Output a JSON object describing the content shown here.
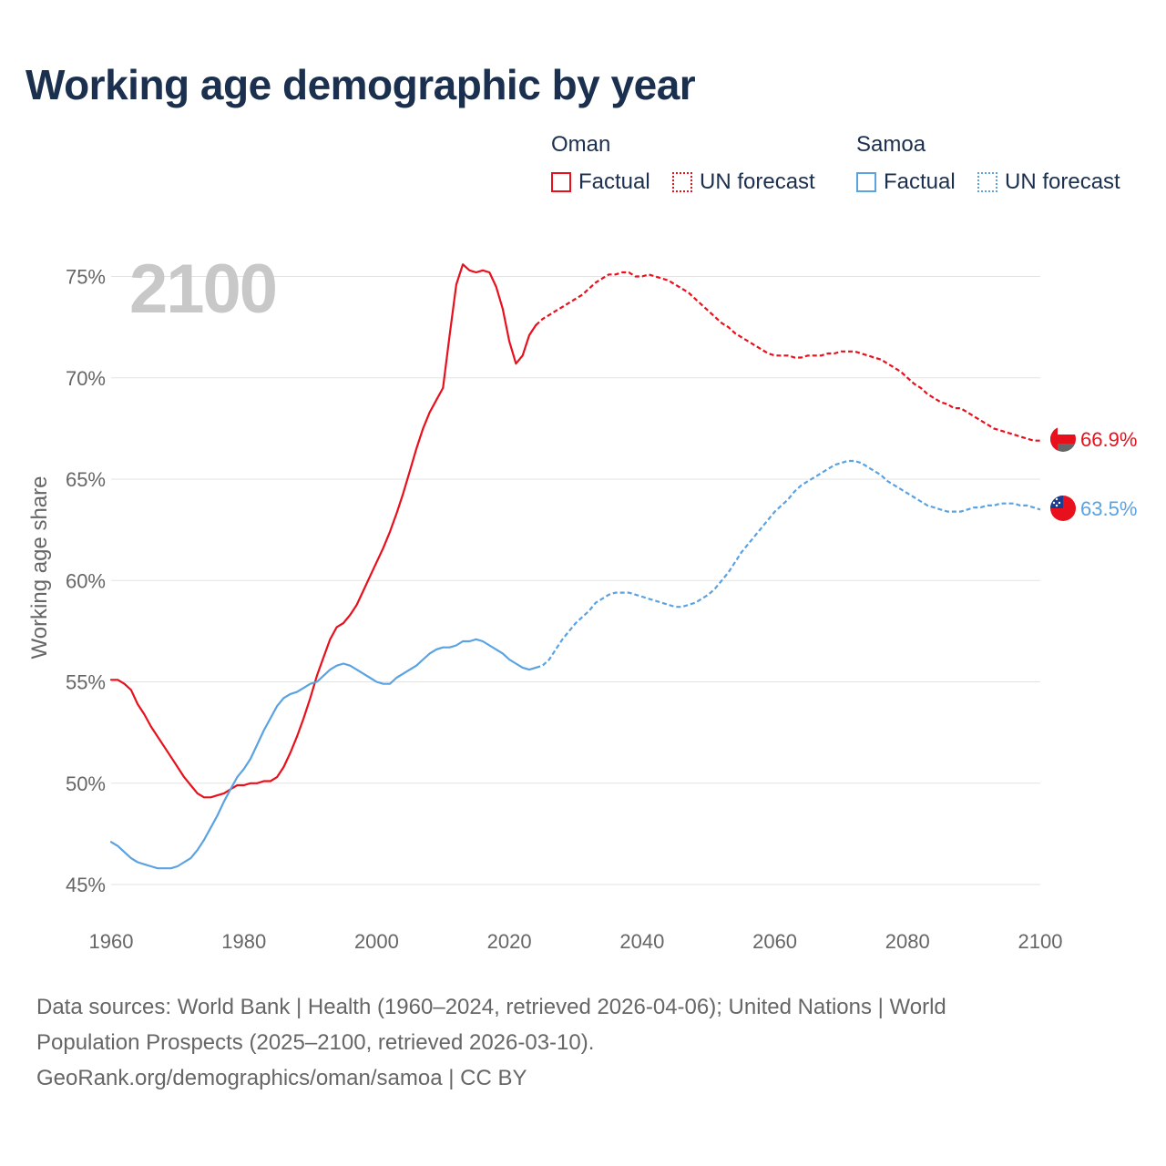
{
  "title": "Working age demographic by year",
  "legend": {
    "groups": [
      {
        "name": "Oman",
        "color": "#e8101c",
        "factual_label": "Factual",
        "forecast_label": "UN forecast"
      },
      {
        "name": "Samoa",
        "color": "#5aa2e2",
        "factual_label": "Factual",
        "forecast_label": "UN forecast"
      }
    ]
  },
  "chart_data": {
    "type": "line",
    "year_label": "2100",
    "ylabel": "Working age share",
    "xlim": [
      1960,
      2100
    ],
    "ylim": [
      45,
      76
    ],
    "x_ticks": [
      1960,
      1980,
      2000,
      2020,
      2040,
      2060,
      2080,
      2100
    ],
    "y_ticks": [
      45,
      50,
      55,
      60,
      65,
      70,
      75
    ],
    "y_tick_labels": [
      "45%",
      "50%",
      "55%",
      "60%",
      "65%",
      "70%",
      "75%"
    ],
    "factual_end_year": 2024,
    "series": [
      {
        "name": "Oman",
        "color": "#e8101c",
        "end_label": "66.9%",
        "flag_icon": "oman-flag-icon",
        "points": [
          [
            1960,
            55.1
          ],
          [
            1961,
            55.1
          ],
          [
            1962,
            54.9
          ],
          [
            1963,
            54.6
          ],
          [
            1964,
            53.9
          ],
          [
            1965,
            53.4
          ],
          [
            1966,
            52.8
          ],
          [
            1967,
            52.3
          ],
          [
            1968,
            51.8
          ],
          [
            1969,
            51.3
          ],
          [
            1970,
            50.8
          ],
          [
            1971,
            50.3
          ],
          [
            1972,
            49.9
          ],
          [
            1973,
            49.5
          ],
          [
            1974,
            49.3
          ],
          [
            1975,
            49.3
          ],
          [
            1976,
            49.4
          ],
          [
            1977,
            49.5
          ],
          [
            1978,
            49.7
          ],
          [
            1979,
            49.9
          ],
          [
            1980,
            49.9
          ],
          [
            1981,
            50.0
          ],
          [
            1982,
            50.0
          ],
          [
            1983,
            50.1
          ],
          [
            1984,
            50.1
          ],
          [
            1985,
            50.3
          ],
          [
            1986,
            50.8
          ],
          [
            1987,
            51.5
          ],
          [
            1988,
            52.3
          ],
          [
            1989,
            53.2
          ],
          [
            1990,
            54.2
          ],
          [
            1991,
            55.3
          ],
          [
            1992,
            56.2
          ],
          [
            1993,
            57.1
          ],
          [
            1994,
            57.7
          ],
          [
            1995,
            57.9
          ],
          [
            1996,
            58.3
          ],
          [
            1997,
            58.8
          ],
          [
            1998,
            59.5
          ],
          [
            1999,
            60.2
          ],
          [
            2000,
            60.9
          ],
          [
            2001,
            61.6
          ],
          [
            2002,
            62.4
          ],
          [
            2003,
            63.3
          ],
          [
            2004,
            64.3
          ],
          [
            2005,
            65.4
          ],
          [
            2006,
            66.5
          ],
          [
            2007,
            67.5
          ],
          [
            2008,
            68.3
          ],
          [
            2009,
            68.9
          ],
          [
            2010,
            69.5
          ],
          [
            2011,
            72.1
          ],
          [
            2012,
            74.6
          ],
          [
            2013,
            75.6
          ],
          [
            2014,
            75.3
          ],
          [
            2015,
            75.2
          ],
          [
            2016,
            75.3
          ],
          [
            2017,
            75.2
          ],
          [
            2018,
            74.5
          ],
          [
            2019,
            73.4
          ],
          [
            2020,
            71.8
          ],
          [
            2021,
            70.7
          ],
          [
            2022,
            71.1
          ],
          [
            2023,
            72.1
          ],
          [
            2024,
            72.6
          ],
          [
            2025,
            72.9
          ],
          [
            2026,
            73.1
          ],
          [
            2027,
            73.3
          ],
          [
            2028,
            73.5
          ],
          [
            2029,
            73.7
          ],
          [
            2030,
            73.9
          ],
          [
            2031,
            74.1
          ],
          [
            2032,
            74.4
          ],
          [
            2033,
            74.7
          ],
          [
            2034,
            74.9
          ],
          [
            2035,
            75.1
          ],
          [
            2036,
            75.1
          ],
          [
            2037,
            75.2
          ],
          [
            2038,
            75.2
          ],
          [
            2039,
            75.0
          ],
          [
            2040,
            75.0
          ],
          [
            2041,
            75.1
          ],
          [
            2042,
            75.0
          ],
          [
            2043,
            74.9
          ],
          [
            2044,
            74.8
          ],
          [
            2045,
            74.6
          ],
          [
            2046,
            74.4
          ],
          [
            2047,
            74.2
          ],
          [
            2048,
            73.9
          ],
          [
            2049,
            73.6
          ],
          [
            2050,
            73.3
          ],
          [
            2051,
            73.0
          ],
          [
            2052,
            72.7
          ],
          [
            2053,
            72.5
          ],
          [
            2054,
            72.2
          ],
          [
            2055,
            72.0
          ],
          [
            2056,
            71.8
          ],
          [
            2057,
            71.6
          ],
          [
            2058,
            71.4
          ],
          [
            2059,
            71.2
          ],
          [
            2060,
            71.1
          ],
          [
            2061,
            71.1
          ],
          [
            2062,
            71.1
          ],
          [
            2063,
            71.0
          ],
          [
            2064,
            71.0
          ],
          [
            2065,
            71.1
          ],
          [
            2066,
            71.1
          ],
          [
            2067,
            71.1
          ],
          [
            2068,
            71.2
          ],
          [
            2069,
            71.2
          ],
          [
            2070,
            71.3
          ],
          [
            2071,
            71.3
          ],
          [
            2072,
            71.3
          ],
          [
            2073,
            71.2
          ],
          [
            2074,
            71.1
          ],
          [
            2075,
            71.0
          ],
          [
            2076,
            70.9
          ],
          [
            2077,
            70.7
          ],
          [
            2078,
            70.5
          ],
          [
            2079,
            70.3
          ],
          [
            2080,
            70.0
          ],
          [
            2081,
            69.7
          ],
          [
            2082,
            69.5
          ],
          [
            2083,
            69.2
          ],
          [
            2084,
            69.0
          ],
          [
            2085,
            68.8
          ],
          [
            2086,
            68.7
          ],
          [
            2087,
            68.5
          ],
          [
            2088,
            68.5
          ],
          [
            2089,
            68.3
          ],
          [
            2090,
            68.1
          ],
          [
            2091,
            67.9
          ],
          [
            2092,
            67.7
          ],
          [
            2093,
            67.5
          ],
          [
            2094,
            67.4
          ],
          [
            2095,
            67.3
          ],
          [
            2096,
            67.2
          ],
          [
            2097,
            67.1
          ],
          [
            2098,
            67.0
          ],
          [
            2099,
            66.9
          ],
          [
            2100,
            66.9
          ]
        ]
      },
      {
        "name": "Samoa",
        "color": "#5aa2e2",
        "end_label": "63.5%",
        "flag_icon": "samoa-flag-icon",
        "points": [
          [
            1960,
            47.1
          ],
          [
            1961,
            46.9
          ],
          [
            1962,
            46.6
          ],
          [
            1963,
            46.3
          ],
          [
            1964,
            46.1
          ],
          [
            1965,
            46.0
          ],
          [
            1966,
            45.9
          ],
          [
            1967,
            45.8
          ],
          [
            1968,
            45.8
          ],
          [
            1969,
            45.8
          ],
          [
            1970,
            45.9
          ],
          [
            1971,
            46.1
          ],
          [
            1972,
            46.3
          ],
          [
            1973,
            46.7
          ],
          [
            1974,
            47.2
          ],
          [
            1975,
            47.8
          ],
          [
            1976,
            48.4
          ],
          [
            1977,
            49.1
          ],
          [
            1978,
            49.7
          ],
          [
            1979,
            50.3
          ],
          [
            1980,
            50.7
          ],
          [
            1981,
            51.2
          ],
          [
            1982,
            51.9
          ],
          [
            1983,
            52.6
          ],
          [
            1984,
            53.2
          ],
          [
            1985,
            53.8
          ],
          [
            1986,
            54.2
          ],
          [
            1987,
            54.4
          ],
          [
            1988,
            54.5
          ],
          [
            1989,
            54.7
          ],
          [
            1990,
            54.9
          ],
          [
            1991,
            55.0
          ],
          [
            1992,
            55.3
          ],
          [
            1993,
            55.6
          ],
          [
            1994,
            55.8
          ],
          [
            1995,
            55.9
          ],
          [
            1996,
            55.8
          ],
          [
            1997,
            55.6
          ],
          [
            1998,
            55.4
          ],
          [
            1999,
            55.2
          ],
          [
            2000,
            55.0
          ],
          [
            2001,
            54.9
          ],
          [
            2002,
            54.9
          ],
          [
            2003,
            55.2
          ],
          [
            2004,
            55.4
          ],
          [
            2005,
            55.6
          ],
          [
            2006,
            55.8
          ],
          [
            2007,
            56.1
          ],
          [
            2008,
            56.4
          ],
          [
            2009,
            56.6
          ],
          [
            2010,
            56.7
          ],
          [
            2011,
            56.7
          ],
          [
            2012,
            56.8
          ],
          [
            2013,
            57.0
          ],
          [
            2014,
            57.0
          ],
          [
            2015,
            57.1
          ],
          [
            2016,
            57.0
          ],
          [
            2017,
            56.8
          ],
          [
            2018,
            56.6
          ],
          [
            2019,
            56.4
          ],
          [
            2020,
            56.1
          ],
          [
            2021,
            55.9
          ],
          [
            2022,
            55.7
          ],
          [
            2023,
            55.6
          ],
          [
            2024,
            55.7
          ],
          [
            2025,
            55.8
          ],
          [
            2026,
            56.1
          ],
          [
            2027,
            56.6
          ],
          [
            2028,
            57.1
          ],
          [
            2029,
            57.5
          ],
          [
            2030,
            57.9
          ],
          [
            2031,
            58.2
          ],
          [
            2032,
            58.5
          ],
          [
            2033,
            58.9
          ],
          [
            2034,
            59.1
          ],
          [
            2035,
            59.3
          ],
          [
            2036,
            59.4
          ],
          [
            2037,
            59.4
          ],
          [
            2038,
            59.4
          ],
          [
            2039,
            59.3
          ],
          [
            2040,
            59.2
          ],
          [
            2041,
            59.1
          ],
          [
            2042,
            59.0
          ],
          [
            2043,
            58.9
          ],
          [
            2044,
            58.8
          ],
          [
            2045,
            58.7
          ],
          [
            2046,
            58.7
          ],
          [
            2047,
            58.8
          ],
          [
            2048,
            58.9
          ],
          [
            2049,
            59.1
          ],
          [
            2050,
            59.3
          ],
          [
            2051,
            59.6
          ],
          [
            2052,
            60.0
          ],
          [
            2053,
            60.4
          ],
          [
            2054,
            60.9
          ],
          [
            2055,
            61.4
          ],
          [
            2056,
            61.8
          ],
          [
            2057,
            62.2
          ],
          [
            2058,
            62.6
          ],
          [
            2059,
            63.0
          ],
          [
            2060,
            63.4
          ],
          [
            2061,
            63.7
          ],
          [
            2062,
            64.0
          ],
          [
            2063,
            64.4
          ],
          [
            2064,
            64.7
          ],
          [
            2065,
            64.9
          ],
          [
            2066,
            65.1
          ],
          [
            2067,
            65.3
          ],
          [
            2068,
            65.5
          ],
          [
            2069,
            65.7
          ],
          [
            2070,
            65.8
          ],
          [
            2071,
            65.9
          ],
          [
            2072,
            65.9
          ],
          [
            2073,
            65.8
          ],
          [
            2074,
            65.6
          ],
          [
            2075,
            65.4
          ],
          [
            2076,
            65.2
          ],
          [
            2077,
            64.9
          ],
          [
            2078,
            64.7
          ],
          [
            2079,
            64.5
          ],
          [
            2080,
            64.3
          ],
          [
            2081,
            64.1
          ],
          [
            2082,
            63.9
          ],
          [
            2083,
            63.7
          ],
          [
            2084,
            63.6
          ],
          [
            2085,
            63.5
          ],
          [
            2086,
            63.4
          ],
          [
            2087,
            63.4
          ],
          [
            2088,
            63.4
          ],
          [
            2089,
            63.5
          ],
          [
            2090,
            63.6
          ],
          [
            2091,
            63.6
          ],
          [
            2092,
            63.7
          ],
          [
            2093,
            63.7
          ],
          [
            2094,
            63.8
          ],
          [
            2095,
            63.8
          ],
          [
            2096,
            63.8
          ],
          [
            2097,
            63.7
          ],
          [
            2098,
            63.7
          ],
          [
            2099,
            63.6
          ],
          [
            2100,
            63.5
          ]
        ]
      }
    ]
  },
  "footer": {
    "line1": "Data sources: World Bank | Health (1960–2024, retrieved 2026-04-06); United Nations | World",
    "line2": "Population Prospects (2025–2100, retrieved 2026-03-10).",
    "line3": "GeoRank.org/demographics/oman/samoa | CC BY"
  }
}
